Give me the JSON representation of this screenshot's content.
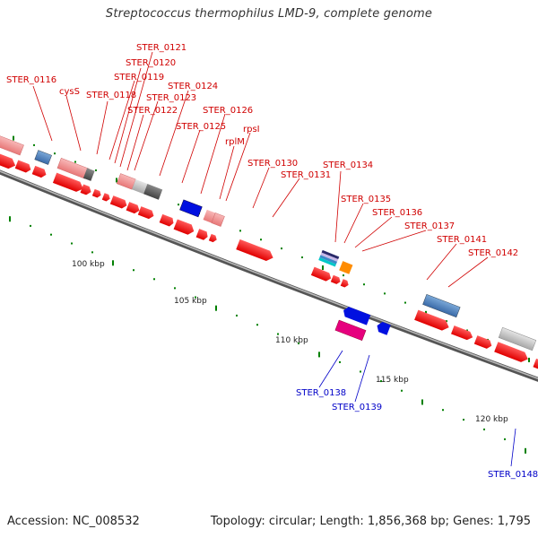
{
  "title": "Streptococcus thermophilus LMD-9, complete genome",
  "footer": {
    "accession": "Accession: NC_008532",
    "topology": "Topology: circular; Length: 1,856,368 bp; Genes: 1,795"
  },
  "scale_labels": [
    "100 kbp",
    "105 kbp",
    "110 kbp",
    "115 kbp",
    "120 kbp"
  ],
  "colors": {
    "forward_cds": "#ff0000",
    "feature_label_forward": "#d00000",
    "feature_label_reverse": "#0000c8",
    "tick_green": "#008000",
    "backbone": "#777777"
  },
  "gene_labels_forward": [
    "STER_0116",
    "cysS",
    "STER_0118",
    "STER_0119",
    "STER_0120",
    "STER_0121",
    "STER_0122",
    "STER_0123",
    "STER_0124",
    "STER_0125",
    "STER_0126",
    "rplM",
    "rpsI",
    "STER_0130",
    "STER_0131",
    "STER_0134",
    "STER_0135",
    "STER_0136",
    "STER_0137",
    "STER_0141",
    "STER_0142"
  ],
  "gene_labels_reverse": [
    "STER_0138",
    "STER_0139",
    "STER_0148"
  ]
}
